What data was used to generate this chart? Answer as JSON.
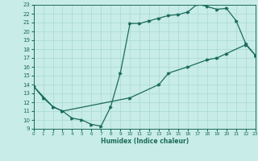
{
  "xlabel": "Humidex (Indice chaleur)",
  "bg_color": "#c8ece8",
  "grid_color": "#a8d8d4",
  "line_color": "#1a6b5a",
  "xlim": [
    0,
    23
  ],
  "ylim": [
    9,
    23
  ],
  "xticks": [
    0,
    1,
    2,
    3,
    4,
    5,
    6,
    7,
    8,
    9,
    10,
    11,
    12,
    13,
    14,
    15,
    16,
    17,
    18,
    19,
    20,
    21,
    22,
    23
  ],
  "yticks": [
    9,
    10,
    11,
    12,
    13,
    14,
    15,
    16,
    17,
    18,
    19,
    20,
    21,
    22,
    23
  ],
  "line1_x": [
    0,
    1,
    2,
    3,
    4,
    5,
    6,
    7,
    8,
    9,
    10,
    11,
    12,
    13,
    14,
    15,
    16,
    17,
    18,
    19,
    20,
    21,
    22,
    23
  ],
  "line1_y": [
    13.8,
    12.5,
    11.5,
    11.0,
    10.2,
    10.0,
    9.5,
    9.3,
    11.5,
    15.3,
    20.9,
    20.9,
    21.2,
    21.5,
    21.8,
    21.9,
    22.2,
    23.1,
    22.8,
    22.5,
    22.6,
    21.2,
    18.6,
    17.3
  ],
  "line2_x": [
    0,
    2,
    3,
    10,
    13,
    14,
    16,
    18,
    19,
    20,
    22,
    23
  ],
  "line2_y": [
    13.8,
    11.5,
    11.0,
    12.5,
    14.0,
    15.3,
    16.0,
    16.8,
    17.0,
    17.5,
    18.5,
    17.3
  ]
}
